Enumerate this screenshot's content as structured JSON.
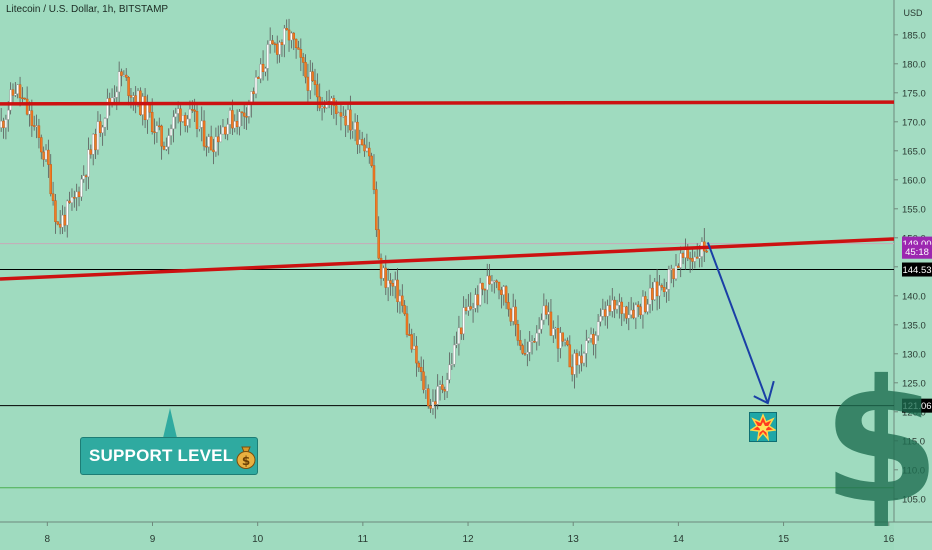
{
  "chart_data": {
    "type": "candlestick",
    "title": "Litecoin / U.S. Dollar, 1h, BITSTAMP",
    "currency": "USD",
    "x_ticks": [
      "8",
      "9",
      "10",
      "11",
      "12",
      "13",
      "14",
      "15",
      "16"
    ],
    "y_ticks": [
      105,
      110,
      115,
      120,
      125,
      130,
      135,
      140,
      145,
      150,
      155,
      160,
      165,
      170,
      175,
      180,
      185
    ],
    "ylim": [
      101,
      191
    ],
    "xlim": [
      7.55,
      16.05
    ],
    "price_labels": [
      {
        "text": "149.00",
        "value": 149.0,
        "color": "#9c27b0"
      },
      {
        "text": "45:18",
        "value": 147.6,
        "color": "#9c27b0"
      },
      {
        "text": "144.53",
        "value": 144.53,
        "color": "#000000"
      },
      {
        "text": "121.06",
        "value": 121.06,
        "color": "#000000"
      }
    ],
    "horizontal_levels": [
      {
        "value": 144.53,
        "color": "#000000"
      },
      {
        "value": 121.06,
        "color": "#000000"
      },
      {
        "value": 149.0,
        "color": "#c7aab8"
      },
      {
        "value": 106.9,
        "color": "#4caf50"
      }
    ],
    "trendlines": [
      {
        "x": [
          7.55,
          16.05
        ],
        "y": [
          173.1,
          173.4
        ],
        "color": "#cc1111",
        "width": 3.5
      },
      {
        "x": [
          7.55,
          16.05
        ],
        "y": [
          142.9,
          149.8
        ],
        "color": "#cc1111",
        "width": 3.5
      }
    ],
    "forecast_arrow": {
      "x": [
        14.28,
        14.85
      ],
      "y": [
        149.2,
        121.5
      ],
      "color": "#1a3fa6"
    },
    "price_path": {
      "x": [
        7.55,
        7.7,
        7.85,
        8.0,
        8.1,
        8.25,
        8.4,
        8.55,
        8.7,
        8.85,
        9.0,
        9.1,
        9.25,
        9.4,
        9.55,
        9.7,
        9.85,
        10.0,
        10.1,
        10.3,
        10.45,
        10.6,
        10.8,
        10.95,
        11.05,
        11.1,
        11.15,
        11.25,
        11.35,
        11.45,
        11.55,
        11.65,
        11.8,
        11.95,
        12.1,
        12.25,
        12.4,
        12.55,
        12.7,
        12.85,
        13.0,
        13.15,
        13.3,
        13.45,
        13.6,
        13.75,
        13.9,
        14.0,
        14.15,
        14.28
      ],
      "y": [
        169,
        176,
        170,
        163,
        152,
        156,
        164,
        172,
        178,
        174,
        170,
        166,
        172,
        170,
        166,
        170,
        171,
        177,
        182,
        185,
        178,
        174,
        172,
        168,
        166,
        160,
        145,
        142,
        140,
        132,
        126,
        121,
        126,
        136,
        140,
        144,
        138,
        129,
        137,
        133,
        128,
        131,
        137,
        138,
        138,
        140,
        143,
        146,
        147,
        149
      ]
    }
  },
  "annotations": {
    "support_label": "SUPPORT LEVEL",
    "bag_icon": "money-bag-icon",
    "explosion_icon": "collision-icon",
    "dollar_sign": "$"
  }
}
